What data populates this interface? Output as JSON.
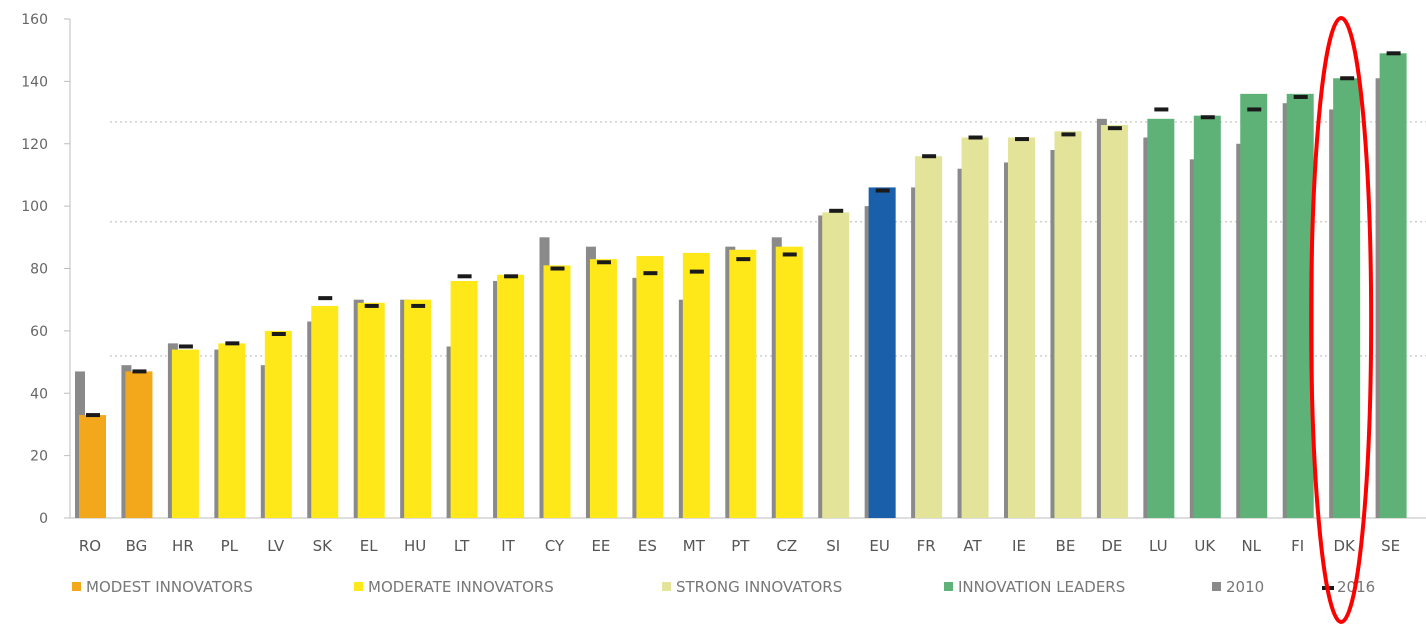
{
  "chart_data": {
    "type": "bar",
    "title": "",
    "xlabel": "",
    "ylabel": "",
    "ylim": [
      0,
      160
    ],
    "yticks": [
      0,
      20,
      40,
      60,
      80,
      100,
      120,
      140,
      160
    ],
    "grid": false,
    "reference_lines": [
      52,
      95,
      127
    ],
    "legend_position": "bottom",
    "colors": {
      "modest": "#f3a81b",
      "moderate": "#ffe81a",
      "strong": "#e3e49a",
      "leaders": "#5fb277",
      "eu": "#1a5faa",
      "val2010": "#8a8a8a",
      "marker2016": "#1a1a1a",
      "reference_line": "#cfcfcf",
      "highlight": "#ff0000"
    },
    "categories": [
      "RO",
      "BG",
      "HR",
      "PL",
      "LV",
      "SK",
      "EL",
      "HU",
      "LT",
      "IT",
      "CY",
      "EE",
      "ES",
      "MT",
      "PT",
      "CZ",
      "SI",
      "EU",
      "FR",
      "AT",
      "IE",
      "BE",
      "DE",
      "LU",
      "UK",
      "NL",
      "FI",
      "DK",
      "SE"
    ],
    "groups": [
      "modest",
      "modest",
      "moderate",
      "moderate",
      "moderate",
      "moderate",
      "moderate",
      "moderate",
      "moderate",
      "moderate",
      "moderate",
      "moderate",
      "moderate",
      "moderate",
      "moderate",
      "moderate",
      "strong",
      "eu",
      "strong",
      "strong",
      "strong",
      "strong",
      "strong",
      "leaders",
      "leaders",
      "leaders",
      "leaders",
      "leaders",
      "leaders"
    ],
    "series": [
      {
        "name": "2010",
        "values": [
          47,
          49,
          56,
          54,
          49,
          63,
          70,
          70,
          55,
          76,
          90,
          87,
          77,
          70,
          87,
          90,
          97,
          100,
          106,
          112,
          114,
          118,
          128,
          122,
          115,
          120,
          133,
          131,
          141
        ]
      },
      {
        "name": "2016",
        "values": [
          33,
          47,
          55,
          56,
          59,
          70.5,
          68,
          68,
          77.5,
          77.5,
          80,
          82,
          78.5,
          79,
          83,
          84.5,
          98.5,
          105,
          116,
          122,
          121.5,
          123,
          125,
          131,
          128.5,
          131,
          135,
          141,
          149
        ]
      }
    ],
    "bar_values": [
      33,
      47,
      54,
      56,
      60,
      68,
      69,
      70,
      76,
      78,
      81,
      83,
      84,
      85,
      86,
      87,
      98,
      106,
      116,
      122,
      122,
      124,
      126,
      128,
      129,
      136,
      136,
      141,
      149
    ],
    "legend": [
      {
        "key": "modest",
        "label": "MODEST INNOVATORS"
      },
      {
        "key": "moderate",
        "label": "MODERATE INNOVATORS"
      },
      {
        "key": "strong",
        "label": "STRONG INNOVATORS"
      },
      {
        "key": "leaders",
        "label": "INNOVATION LEADERS"
      },
      {
        "key": "val2010",
        "label": "2010"
      },
      {
        "key": "marker2016",
        "label": "2016"
      }
    ],
    "highlight_category": "DK"
  }
}
